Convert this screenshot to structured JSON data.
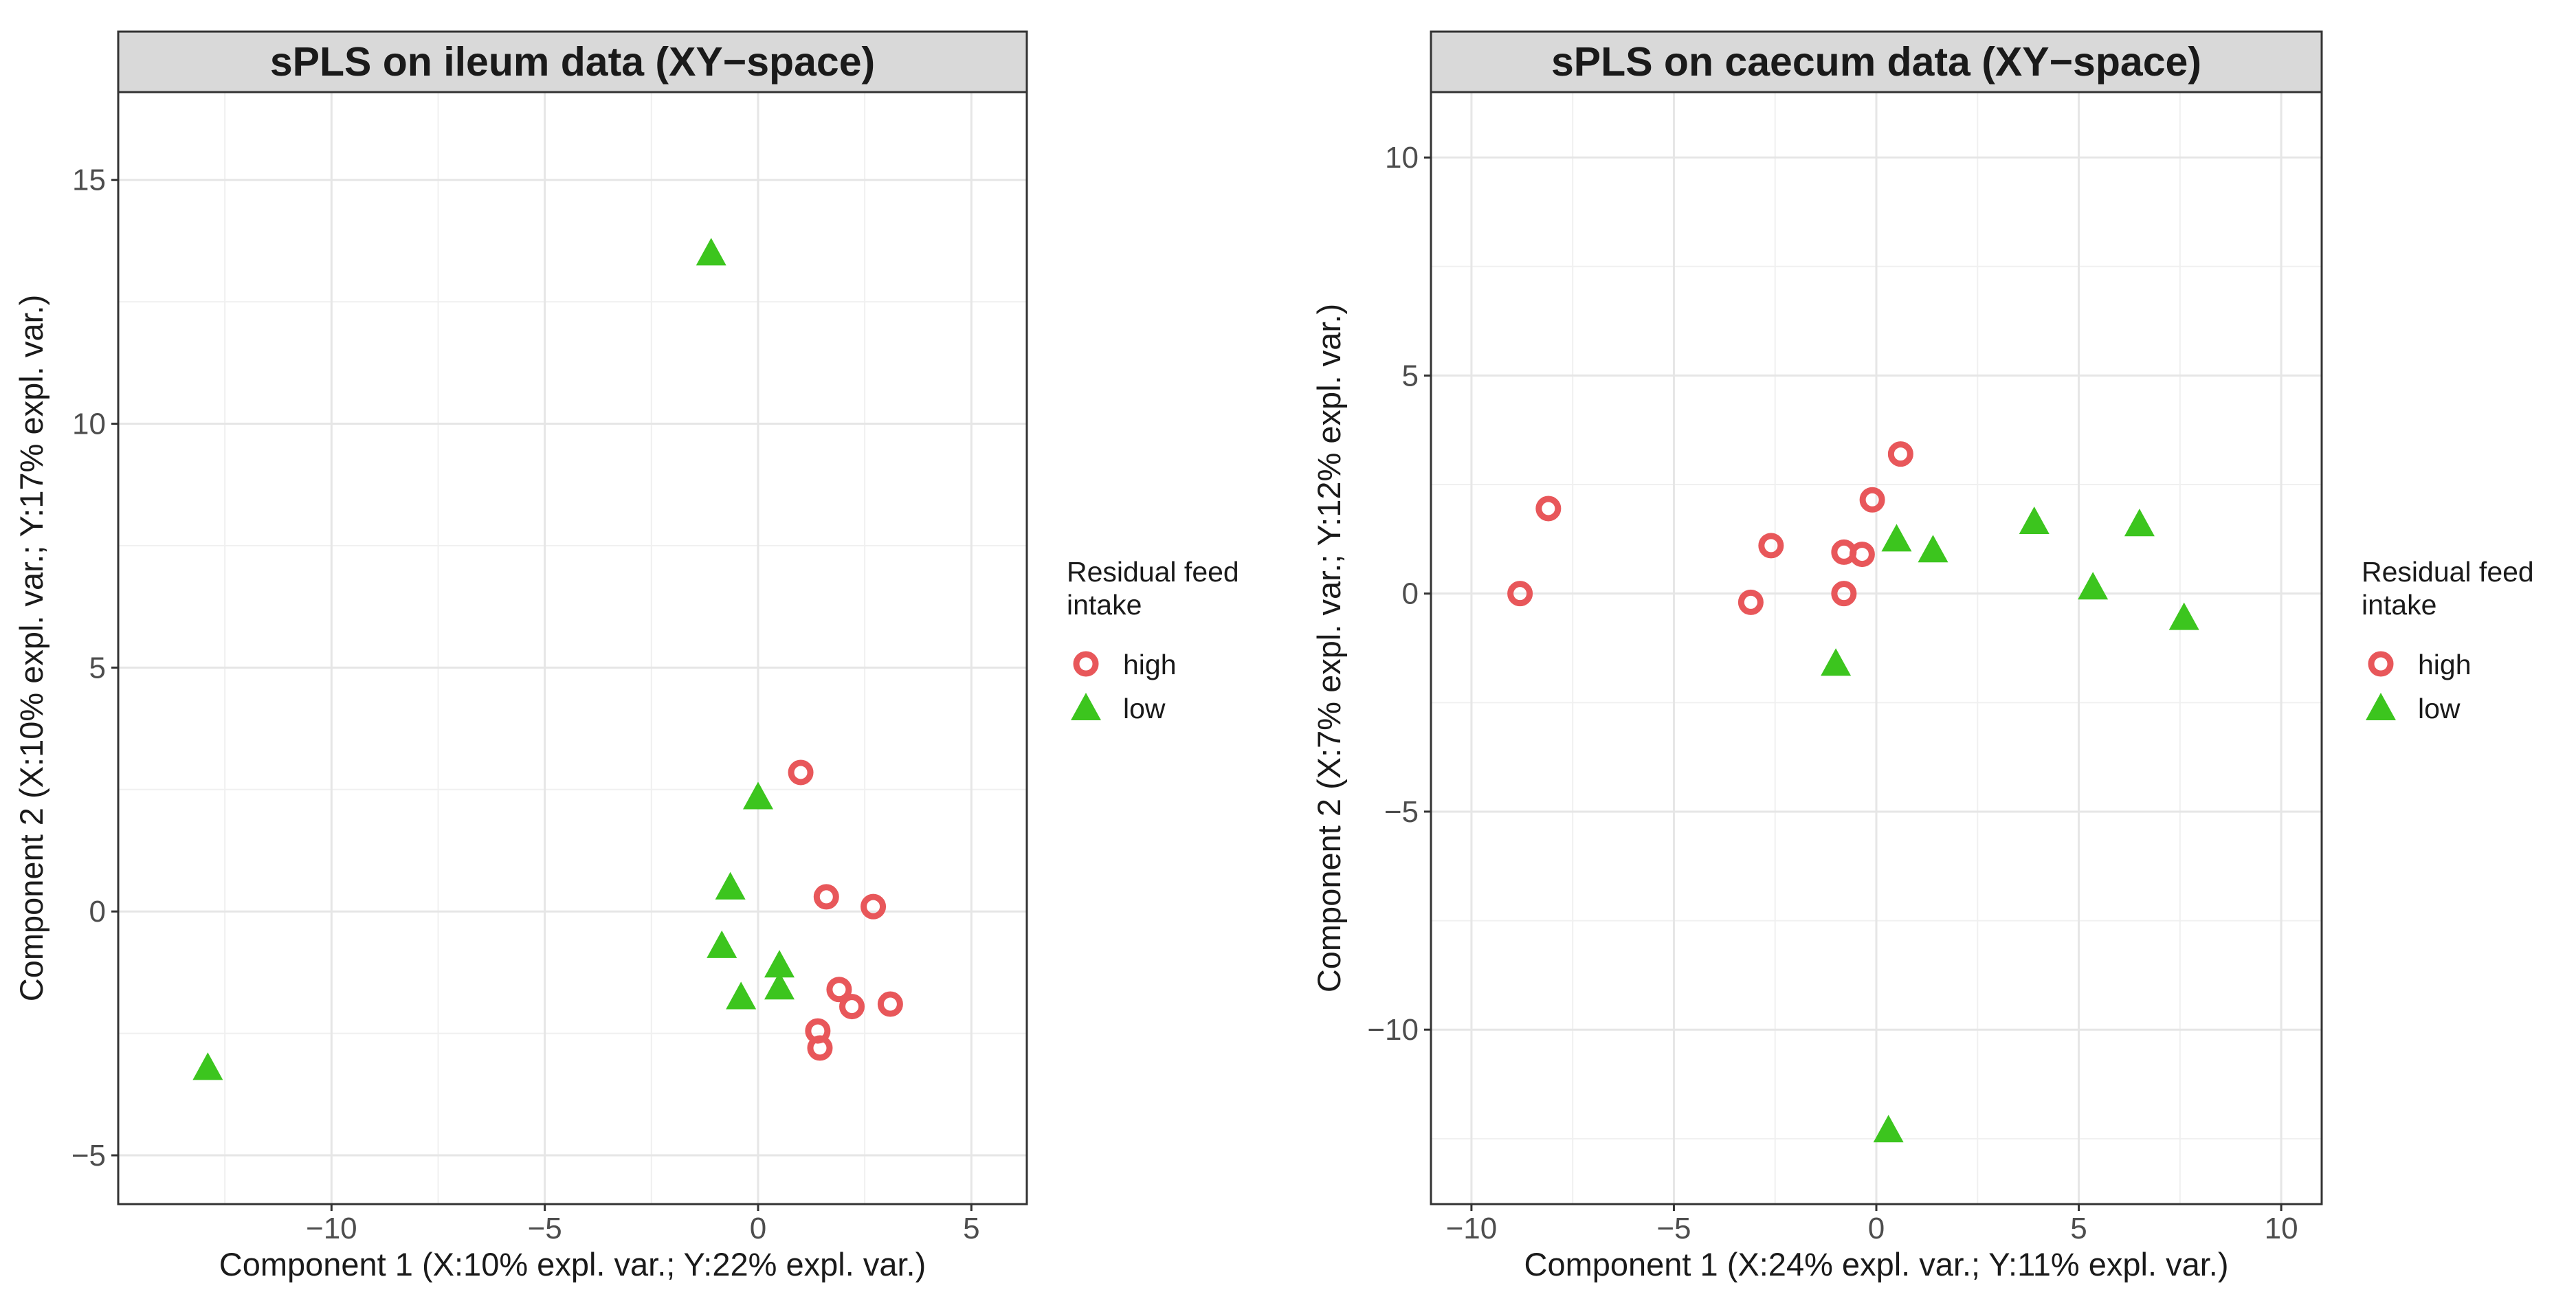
{
  "legend": {
    "title_line1": "Residual feed",
    "title_line2": "intake",
    "entries": [
      {
        "label": "high",
        "shape": "circle-open",
        "color": "#E8575A"
      },
      {
        "label": "low",
        "shape": "triangle-filled",
        "color": "#3CC51E"
      }
    ]
  },
  "chart_data": [
    {
      "type": "scatter",
      "title": "sPLS on ileum data (XY−space)",
      "xlabel": "Component 1 (X:10% expl. var.; Y:22% expl. var.)",
      "ylabel": "Component 2 (X:10% expl. var.; Y:17% expl. var.)",
      "xlim": [
        -15,
        6.3
      ],
      "ylim": [
        -6.0,
        16.8
      ],
      "xticks": [
        -10,
        -5,
        0,
        5
      ],
      "yticks": [
        -5,
        0,
        5,
        10,
        15
      ],
      "xtick_labels": [
        "−10",
        "−5",
        "0",
        "5"
      ],
      "ytick_labels": [
        "−5",
        "0",
        "5",
        "10",
        "15"
      ],
      "grid": true,
      "legend_position": "right",
      "series": [
        {
          "name": "high",
          "points": [
            {
              "x": 1.0,
              "y": 2.85
            },
            {
              "x": 1.6,
              "y": 0.3
            },
            {
              "x": 2.7,
              "y": 0.1
            },
            {
              "x": 1.9,
              "y": -1.6
            },
            {
              "x": 2.2,
              "y": -1.95
            },
            {
              "x": 3.1,
              "y": -1.9
            },
            {
              "x": 1.4,
              "y": -2.45
            },
            {
              "x": 1.45,
              "y": -2.8
            }
          ]
        },
        {
          "name": "low",
          "points": [
            {
              "x": -1.1,
              "y": 13.5
            },
            {
              "x": 0.0,
              "y": 2.35
            },
            {
              "x": -0.65,
              "y": 0.5
            },
            {
              "x": -0.85,
              "y": -0.7
            },
            {
              "x": 0.5,
              "y": -1.1
            },
            {
              "x": 0.5,
              "y": -1.55
            },
            {
              "x": -0.4,
              "y": -1.75
            },
            {
              "x": -12.9,
              "y": -3.2
            }
          ]
        }
      ]
    },
    {
      "type": "scatter",
      "title": "sPLS on caecum data (XY−space)",
      "xlabel": "Component 1 (X:24% expl. var.; Y:11% expl. var.)",
      "ylabel": "Component 2 (X:7% expl. var.; Y:12% expl. var.)",
      "xlim": [
        -11.0,
        11.0
      ],
      "ylim": [
        -14.0,
        11.5
      ],
      "xticks": [
        -10,
        -5,
        0,
        5,
        10
      ],
      "yticks": [
        -10,
        -5,
        0,
        5,
        10
      ],
      "xtick_labels": [
        "−10",
        "−5",
        "0",
        "5",
        "10"
      ],
      "ytick_labels": [
        "−10",
        "−5",
        "0",
        "5",
        "10"
      ],
      "grid": true,
      "legend_position": "right",
      "series": [
        {
          "name": "high",
          "points": [
            {
              "x": -8.1,
              "y": 1.95
            },
            {
              "x": -8.8,
              "y": 0.0
            },
            {
              "x": -2.6,
              "y": 1.1
            },
            {
              "x": -3.1,
              "y": -0.2
            },
            {
              "x": 0.6,
              "y": 3.2
            },
            {
              "x": -0.1,
              "y": 2.15
            },
            {
              "x": -0.8,
              "y": 0.95
            },
            {
              "x": -0.35,
              "y": 0.9
            },
            {
              "x": -0.8,
              "y": 0.0
            }
          ]
        },
        {
          "name": "low",
          "points": [
            {
              "x": 0.5,
              "y": 1.25
            },
            {
              "x": 1.4,
              "y": 1.0
            },
            {
              "x": 3.9,
              "y": 1.65
            },
            {
              "x": 6.5,
              "y": 1.6
            },
            {
              "x": 5.35,
              "y": 0.15
            },
            {
              "x": 7.6,
              "y": -0.55
            },
            {
              "x": -1.0,
              "y": -1.6
            },
            {
              "x": 0.3,
              "y": -12.3
            }
          ]
        }
      ]
    }
  ]
}
